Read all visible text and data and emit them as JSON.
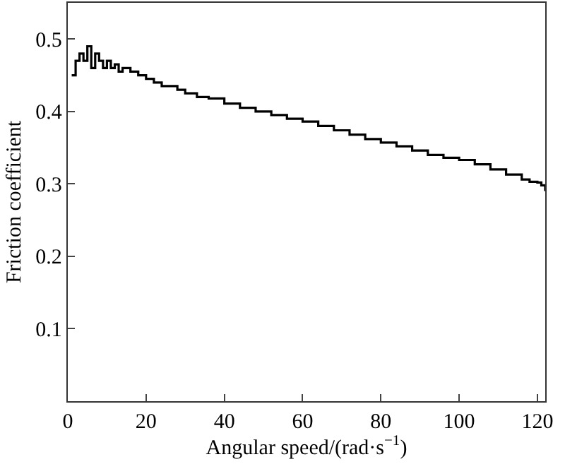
{
  "chart_data": {
    "type": "step",
    "xlabel": "Angular speed/(rad·s$^{−1}$)",
    "ylabel": "Friction coefficient",
    "x": [
      1,
      2,
      3,
      4,
      5,
      6,
      7,
      8,
      9,
      10,
      11,
      12,
      13,
      14,
      16,
      18,
      20,
      22,
      24,
      26,
      28,
      30,
      33,
      36,
      40,
      44,
      48,
      52,
      56,
      60,
      64,
      68,
      72,
      76,
      80,
      84,
      88,
      92,
      96,
      100,
      104,
      108,
      112,
      116,
      118,
      120,
      121,
      122
    ],
    "series": [
      {
        "color": "#000000",
        "values": [
          0.45,
          0.47,
          0.48,
          0.47,
          0.49,
          0.46,
          0.48,
          0.47,
          0.46,
          0.47,
          0.46,
          0.465,
          0.455,
          0.46,
          0.455,
          0.45,
          0.445,
          0.44,
          0.435,
          0.435,
          0.43,
          0.425,
          0.42,
          0.418,
          0.411,
          0.405,
          0.4,
          0.395,
          0.39,
          0.386,
          0.38,
          0.374,
          0.368,
          0.362,
          0.357,
          0.352,
          0.346,
          0.34,
          0.336,
          0.333,
          0.327,
          0.32,
          0.313,
          0.306,
          0.303,
          0.302,
          0.298,
          0.29
        ]
      }
    ],
    "xlim": [
      0,
      122
    ],
    "xticks": [
      0,
      20,
      40,
      60,
      80,
      100,
      120
    ],
    "ylim": [
      0,
      0.55
    ],
    "yticks": [
      0.1,
      0.2,
      0.3,
      0.4,
      0.5
    ]
  }
}
